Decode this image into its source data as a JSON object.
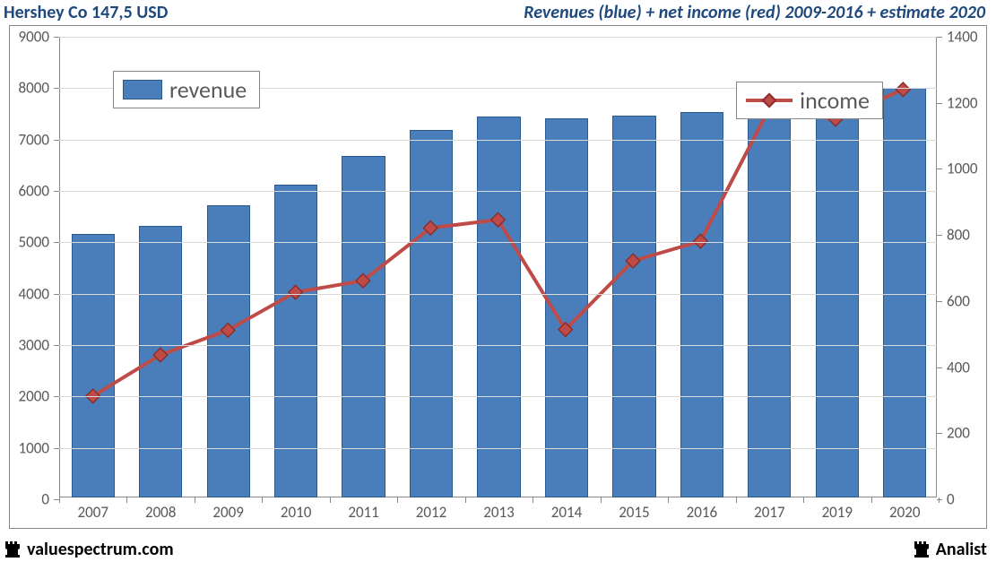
{
  "header": {
    "left": "Hershey Co 147,5 USD",
    "right": "Revenues (blue) + net income (red) 2009-2016 + estimate 2020"
  },
  "chart": {
    "type": "bar+line",
    "background_color": "#ffffff",
    "grid_color": "#d9d9d9",
    "axis_color": "#888888",
    "text_color": "#595959",
    "tick_fontsize": 17,
    "legend_fontsize": 26,
    "categories": [
      "2007",
      "2008",
      "2009",
      "2010",
      "2011",
      "2012",
      "2013",
      "2014",
      "2015",
      "2016",
      "2017",
      "2019",
      "2020"
    ],
    "revenue": {
      "label": "revenue",
      "color": "#4a7ebb",
      "border_color": "#2a5a94",
      "bar_width": 0.64,
      "values": [
        5130,
        5280,
        5680,
        6080,
        6650,
        7150,
        7420,
        7380,
        7430,
        7500,
        7780,
        7980,
        7970
      ],
      "ylim": [
        0,
        9000
      ],
      "ytick_step": 1000
    },
    "income": {
      "label": "income",
      "color": "#be4b48",
      "marker_border": "#8a2f2d",
      "line_width": 4,
      "marker_size": 11,
      "values": [
        310,
        435,
        510,
        625,
        660,
        820,
        845,
        512,
        720,
        780,
        1175,
        1150,
        1240
      ],
      "ylim": [
        0,
        1400
      ],
      "ytick_step": 200
    }
  },
  "footer": {
    "left": "valuespectrum.com",
    "right": "Analist"
  }
}
